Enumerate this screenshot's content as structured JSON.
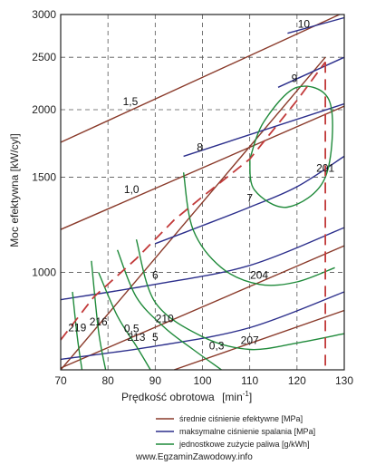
{
  "chart_data": {
    "type": "line",
    "xlabel": "Prędkość obrotowa",
    "xlabel_unit": "[min",
    "xlabel_unit_exp": "-1",
    "xlabel_unit_close": "]",
    "ylabel": "Moc efektywna [kW/cyl]",
    "x_ticks": [
      "70",
      "80",
      "90",
      "100",
      "110",
      "120",
      "130"
    ],
    "y_ticks": [
      "1000",
      "1500",
      "2000",
      "2500",
      "3000"
    ],
    "xlim": [
      70,
      130
    ],
    "ylim": [
      660,
      3000
    ],
    "y_scale": "log",
    "grid": true,
    "colors": {
      "mean_pressure": "#8a3a2a",
      "max_pressure": "#2c2f8c",
      "fuel_consumption": "#1f8a3a",
      "dashed_limit": "#c23a3a",
      "grid": "#555555"
    },
    "series": [
      {
        "name": "średnie ciśnienie efektywne [MPa]",
        "group": "mean_pressure",
        "label": "1,5",
        "x": [
          70,
          129
        ],
        "y": [
          1740,
          3000
        ]
      },
      {
        "name": "średnie ciśnienie efektywne [MPa]",
        "group": "mean_pressure",
        "label": "1,0",
        "x": [
          70,
          130
        ],
        "y": [
          1200,
          2030
        ]
      },
      {
        "name": "średnie ciśnienie efektywne [MPa]",
        "group": "mean_pressure",
        "label": "0,5",
        "x": [
          70,
          130
        ],
        "y": [
          665,
          1120
        ]
      },
      {
        "name": "średnie ciśnienie efektywne [MPa]",
        "group": "mean_pressure",
        "label": "0,3",
        "x": [
          94,
          130
        ],
        "y": [
          660,
          850
        ]
      },
      {
        "name": "średnie ciśnienie efektywne [MPa]",
        "group": "mean_pressure",
        "label": "",
        "x": [
          70,
          126
        ],
        "y": [
          660,
          2500
        ]
      },
      {
        "name": "maksymalne ciśnienie spalania [MPa]",
        "group": "max_pressure",
        "label": "10",
        "x": [
          118,
          130
        ],
        "y": [
          2770,
          2960
        ]
      },
      {
        "name": "maksymalne ciśnienie spalania [MPa]",
        "group": "max_pressure",
        "label": "9",
        "x": [
          116,
          130
        ],
        "y": [
          2200,
          2500
        ]
      },
      {
        "name": "maksymalne ciśnienie spalania [MPa]",
        "group": "max_pressure",
        "label": "8",
        "x": [
          96,
          130
        ],
        "y": [
          1640,
          2050
        ]
      },
      {
        "name": "maksymalne ciśnienie spalania [MPa]",
        "group": "max_pressure",
        "label": "7",
        "x": [
          90,
          100,
          110,
          120,
          130
        ],
        "y": [
          1130,
          1220,
          1320,
          1440,
          1640
        ]
      },
      {
        "name": "maksymalne ciśnienie spalania [MPa]",
        "group": "max_pressure",
        "label": "6",
        "x": [
          70,
          90,
          110,
          130
        ],
        "y": [
          890,
          950,
          1030,
          1210
        ]
      },
      {
        "name": "maksymalne ciśnienie spalania [MPa]",
        "group": "max_pressure",
        "label": "5",
        "x": [
          70,
          90,
          110,
          130
        ],
        "y": [
          690,
          730,
          790,
          920
        ]
      },
      {
        "name": "jednostkowe zużycie paliwa [g/kWh]",
        "group": "fuel_consumption",
        "label": "201",
        "x": [
          110,
          113,
          120,
          127,
          126,
          118,
          111,
          110
        ],
        "y": [
          1620,
          1900,
          2200,
          2060,
          1500,
          1320,
          1420,
          1620
        ]
      },
      {
        "name": "jednostkowe zużycie paliwa [g/kWh]",
        "group": "fuel_consumption",
        "label": "204",
        "x": [
          96,
          98,
          104,
          112,
          120,
          128
        ],
        "y": [
          1530,
          1200,
          1020,
          950,
          960,
          1020
        ]
      },
      {
        "name": "jednostkowe zużycie paliwa [g/kWh]",
        "group": "fuel_consumption",
        "label": "207",
        "x": [
          86,
          90,
          100,
          110,
          120,
          130
        ],
        "y": [
          1150,
          880,
          760,
          720,
          740,
          770
        ]
      },
      {
        "name": "jednostkowe zużycie paliwa [g/kWh]",
        "group": "fuel_consumption",
        "label": "210",
        "x": [
          82,
          86,
          92,
          98,
          104
        ],
        "y": [
          1100,
          900,
          790,
          720,
          660
        ]
      },
      {
        "name": "jednostkowe zużycie paliwa [g/kWh]",
        "group": "fuel_consumption",
        "label": "213",
        "x": [
          78,
          82,
          86,
          89
        ],
        "y": [
          1000,
          830,
          730,
          660
        ]
      },
      {
        "name": "jednostkowe zużycie paliwa [g/kWh]",
        "group": "fuel_consumption",
        "label": "216",
        "x": [
          76.5,
          78,
          79.5
        ],
        "y": [
          1050,
          780,
          660
        ]
      },
      {
        "name": "jednostkowe zużycie paliwa [g/kWh]",
        "group": "fuel_consumption",
        "label": "219",
        "x": [
          72.5,
          73.5,
          74.5
        ],
        "y": [
          920,
          760,
          660
        ]
      }
    ],
    "dashed_limits": [
      {
        "x": [
          70,
          77,
          86,
          94,
          100,
          110,
          120,
          126
        ],
        "y": [
          750,
          900,
          1060,
          1250,
          1380,
          1620,
          2080,
          2450
        ]
      },
      {
        "x": [
          126,
          126
        ],
        "y": [
          2450,
          660
        ]
      }
    ],
    "legend": [
      {
        "label": "średnie ciśnienie efektywne [MPa]",
        "group": "mean_pressure"
      },
      {
        "label": "maksymalne ciśnienie spalania [MPa]",
        "group": "max_pressure"
      },
      {
        "label": "jednostkowe zużycie paliwa [g/kWh]",
        "group": "fuel_consumption"
      }
    ],
    "legend_position": "bottom-right",
    "watermark": "www.EgzaminZawodowy.info"
  }
}
